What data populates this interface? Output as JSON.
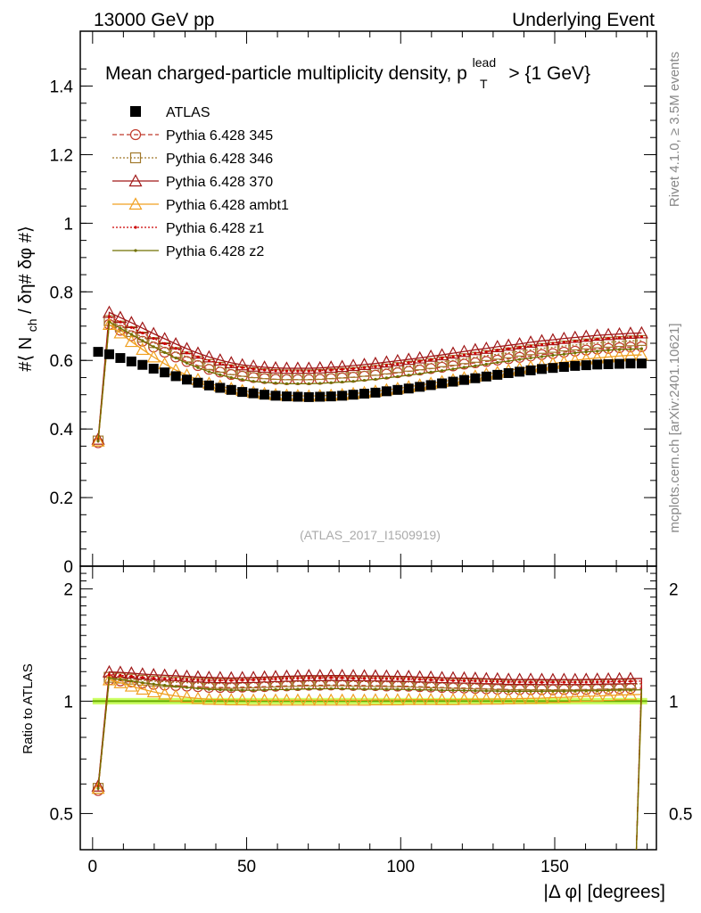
{
  "header": {
    "left": "13000 GeV pp",
    "right": "Underlying Event"
  },
  "side_labels": {
    "rivet": "Rivet 4.1.0, ≥ 3.5M events",
    "mcplots": "mcplots.cern.ch [arXiv:2401.10621]"
  },
  "colors": {
    "atlas": "#000000",
    "p345": "#c0392b",
    "p346": "#a0782a",
    "p370": "#a01818",
    "ambt1": "#f0a020",
    "z1": "#cc0000",
    "z2": "#707000",
    "band": "#ccff66",
    "refline": "#66aa00"
  },
  "chart_data": [
    {
      "type": "line",
      "title": "Mean charged-particle multiplicity density, p",
      "title_sub": "T",
      "title_sup": "lead",
      "title_tail": "> {1 GeV}",
      "ylabel": "#⟨ N",
      "ylabel_sub": "ch",
      "ylabel_tail": "/ δη# δφ #⟩",
      "watermark": "(ATLAS_2017_I1509919)",
      "xlim": [
        -4,
        183
      ],
      "ylim": [
        0,
        1.56
      ],
      "yticks": [
        0,
        0.2,
        0.4,
        0.6,
        0.8,
        1,
        1.2,
        1.4
      ],
      "ytick_labels": [
        "0",
        "0.2",
        "0.4",
        "0.6",
        "0.8",
        "1",
        "1.2",
        "1.4"
      ],
      "x": [
        1.8,
        5.4,
        9.0,
        12.6,
        16.2,
        19.8,
        23.4,
        27.0,
        30.6,
        34.2,
        37.8,
        41.4,
        45.0,
        48.6,
        52.2,
        55.8,
        59.4,
        63.0,
        66.6,
        70.2,
        73.8,
        77.4,
        81.0,
        84.6,
        88.2,
        91.8,
        95.4,
        99.0,
        102.6,
        106.2,
        109.8,
        113.4,
        117.0,
        120.6,
        124.2,
        127.8,
        131.4,
        135.0,
        138.6,
        142.2,
        145.8,
        149.4,
        153.0,
        156.6,
        160.2,
        163.8,
        167.4,
        171.0,
        174.6,
        178.2
      ],
      "series": [
        {
          "name": "ATLAS",
          "style": "data",
          "values": [
            0.625,
            0.618,
            0.607,
            0.597,
            0.587,
            0.576,
            0.565,
            0.554,
            0.544,
            0.535,
            0.527,
            0.52,
            0.514,
            0.508,
            0.504,
            0.5,
            0.497,
            0.495,
            0.494,
            0.493,
            0.494,
            0.495,
            0.497,
            0.5,
            0.503,
            0.506,
            0.51,
            0.514,
            0.518,
            0.523,
            0.528,
            0.533,
            0.538,
            0.543,
            0.548,
            0.553,
            0.558,
            0.563,
            0.567,
            0.571,
            0.575,
            0.578,
            0.581,
            0.584,
            0.586,
            0.588,
            0.589,
            0.59,
            0.591,
            0.591
          ]
        },
        {
          "name": "Pythia 6.428 345",
          "style": "circle-dash",
          "values": [
            0.36,
            0.705,
            0.688,
            0.672,
            0.656,
            0.639,
            0.624,
            0.61,
            0.597,
            0.585,
            0.574,
            0.566,
            0.559,
            0.554,
            0.55,
            0.547,
            0.545,
            0.544,
            0.544,
            0.544,
            0.545,
            0.547,
            0.549,
            0.551,
            0.554,
            0.557,
            0.56,
            0.564,
            0.568,
            0.572,
            0.576,
            0.58,
            0.584,
            0.589,
            0.593,
            0.597,
            0.601,
            0.605,
            0.609,
            0.613,
            0.617,
            0.62,
            0.624,
            0.627,
            0.63,
            0.633,
            0.635,
            0.637,
            0.639,
            0.64
          ]
        },
        {
          "name": "Pythia 6.428 346",
          "style": "square-dot",
          "values": [
            0.365,
            0.716,
            0.7,
            0.684,
            0.668,
            0.652,
            0.637,
            0.623,
            0.61,
            0.598,
            0.588,
            0.58,
            0.573,
            0.568,
            0.564,
            0.561,
            0.559,
            0.558,
            0.558,
            0.558,
            0.559,
            0.561,
            0.563,
            0.565,
            0.568,
            0.571,
            0.575,
            0.579,
            0.583,
            0.587,
            0.591,
            0.596,
            0.6,
            0.605,
            0.609,
            0.614,
            0.618,
            0.622,
            0.627,
            0.631,
            0.635,
            0.638,
            0.642,
            0.645,
            0.648,
            0.651,
            0.653,
            0.655,
            0.657,
            0.658
          ]
        },
        {
          "name": "Pythia 6.428 370",
          "style": "triangle-solid",
          "values": [
            0.37,
            0.74,
            0.725,
            0.71,
            0.694,
            0.678,
            0.663,
            0.648,
            0.634,
            0.621,
            0.61,
            0.601,
            0.593,
            0.587,
            0.583,
            0.58,
            0.578,
            0.577,
            0.577,
            0.577,
            0.578,
            0.58,
            0.582,
            0.585,
            0.588,
            0.591,
            0.595,
            0.599,
            0.603,
            0.607,
            0.612,
            0.616,
            0.621,
            0.626,
            0.631,
            0.635,
            0.64,
            0.644,
            0.648,
            0.653,
            0.657,
            0.66,
            0.664,
            0.667,
            0.67,
            0.673,
            0.675,
            0.677,
            0.679,
            0.68
          ]
        },
        {
          "name": "Pythia 6.428 ambt1",
          "style": "triangle-solid",
          "values": [
            0.365,
            0.705,
            0.68,
            0.655,
            0.632,
            0.61,
            0.59,
            0.572,
            0.557,
            0.544,
            0.533,
            0.525,
            0.518,
            0.512,
            0.507,
            0.503,
            0.5,
            0.498,
            0.497,
            0.496,
            0.497,
            0.498,
            0.5,
            0.503,
            0.506,
            0.51,
            0.514,
            0.518,
            0.523,
            0.528,
            0.533,
            0.538,
            0.543,
            0.549,
            0.554,
            0.56,
            0.565,
            0.571,
            0.576,
            0.581,
            0.586,
            0.591,
            0.595,
            0.6,
            0.604,
            0.607,
            0.61,
            0.613,
            0.615,
            0.616
          ]
        },
        {
          "name": "Pythia 6.428 z1",
          "style": "dot-dot",
          "values": [
            0.37,
            0.728,
            0.712,
            0.696,
            0.68,
            0.664,
            0.649,
            0.635,
            0.622,
            0.61,
            0.599,
            0.591,
            0.584,
            0.579,
            0.575,
            0.572,
            0.57,
            0.569,
            0.569,
            0.569,
            0.57,
            0.572,
            0.574,
            0.576,
            0.579,
            0.582,
            0.586,
            0.59,
            0.594,
            0.598,
            0.602,
            0.607,
            0.611,
            0.616,
            0.621,
            0.625,
            0.63,
            0.634,
            0.638,
            0.642,
            0.646,
            0.65,
            0.653,
            0.656,
            0.659,
            0.662,
            0.664,
            0.666,
            0.668,
            0.669
          ]
        },
        {
          "name": "Pythia 6.428 z2",
          "style": "line",
          "values": [
            0.365,
            0.712,
            0.694,
            0.676,
            0.658,
            0.64,
            0.623,
            0.607,
            0.592,
            0.579,
            0.567,
            0.558,
            0.55,
            0.544,
            0.539,
            0.536,
            0.534,
            0.532,
            0.532,
            0.532,
            0.533,
            0.535,
            0.537,
            0.539,
            0.542,
            0.545,
            0.549,
            0.553,
            0.557,
            0.561,
            0.566,
            0.57,
            0.575,
            0.58,
            0.584,
            0.589,
            0.594,
            0.598,
            0.603,
            0.607,
            0.611,
            0.615,
            0.618,
            0.622,
            0.625,
            0.627,
            0.63,
            0.632,
            0.633,
            0.634
          ]
        }
      ]
    },
    {
      "type": "line",
      "title": "",
      "ylabel": "Ratio to ATLAS",
      "xlabel": "|Δ φ| [degrees]",
      "xlim": [
        -4,
        183
      ],
      "ylim": [
        0.4,
        2.3
      ],
      "yscale": "log",
      "yticks": [
        0.5,
        1,
        2
      ],
      "ytick_labels": [
        "0.5",
        "1",
        "2"
      ],
      "xticks": [
        0,
        50,
        100,
        150
      ],
      "xtick_labels": [
        "0",
        "50",
        "100",
        "150"
      ],
      "reference": 1,
      "band": [
        0.98,
        1.02
      ],
      "note": "ratio = model / ATLAS for each series; last bin drops below axis"
    }
  ]
}
